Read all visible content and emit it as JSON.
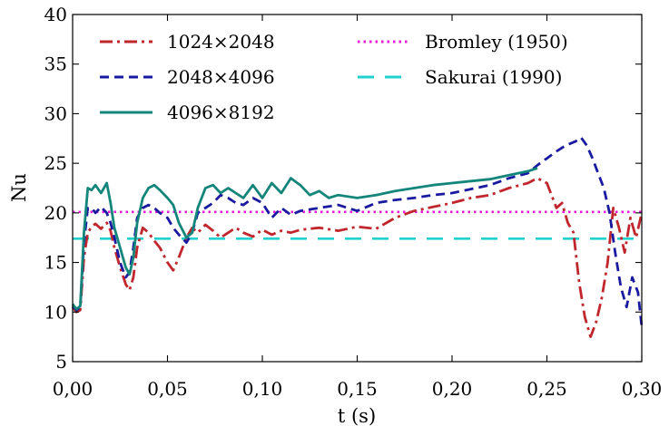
{
  "chart_data": {
    "type": "line",
    "xlabel": "t (s)",
    "ylabel": "Nu",
    "xlim": [
      0,
      0.3
    ],
    "ylim": [
      5,
      40
    ],
    "x_ticks": [
      0,
      0.05,
      0.1,
      0.15,
      0.2,
      0.25,
      0.3
    ],
    "x_tick_labels": [
      "0,00",
      "0,05",
      "0,10",
      "0,15",
      "0,20",
      "0,25",
      "0,30"
    ],
    "y_ticks": [
      5,
      10,
      15,
      20,
      25,
      30,
      35,
      40
    ],
    "y_tick_labels": [
      "5",
      "10",
      "15",
      "20",
      "25",
      "30",
      "35",
      "40"
    ],
    "grid": false,
    "legend_placement": "top",
    "series": [
      {
        "name": "1024×2048",
        "color": "#c0272d",
        "dash": "dash-dot",
        "x": [
          0.0,
          0.002,
          0.004,
          0.006,
          0.008,
          0.01,
          0.012,
          0.015,
          0.018,
          0.02,
          0.022,
          0.025,
          0.028,
          0.03,
          0.032,
          0.034,
          0.037,
          0.04,
          0.043,
          0.046,
          0.05,
          0.053,
          0.056,
          0.06,
          0.063,
          0.066,
          0.07,
          0.074,
          0.078,
          0.082,
          0.086,
          0.09,
          0.095,
          0.1,
          0.105,
          0.11,
          0.115,
          0.12,
          0.13,
          0.14,
          0.15,
          0.16,
          0.17,
          0.18,
          0.19,
          0.2,
          0.21,
          0.22,
          0.23,
          0.24,
          0.245,
          0.25,
          0.255,
          0.258,
          0.261,
          0.264,
          0.267,
          0.27,
          0.273,
          0.276,
          0.279,
          0.282,
          0.285,
          0.288,
          0.291,
          0.294,
          0.297,
          0.3
        ],
        "y": [
          10.5,
          10.0,
          10.2,
          15.5,
          18.0,
          18.6,
          18.9,
          18.4,
          19.0,
          18.2,
          16.5,
          14.5,
          12.8,
          12.2,
          13.5,
          16.5,
          18.5,
          18.0,
          17.2,
          16.5,
          15.0,
          14.2,
          15.5,
          17.5,
          18.5,
          18.0,
          18.8,
          18.2,
          17.5,
          18.0,
          18.5,
          18.0,
          17.6,
          18.3,
          17.8,
          18.2,
          18.0,
          18.3,
          18.5,
          18.2,
          18.6,
          18.4,
          19.5,
          20.2,
          20.6,
          21.0,
          21.5,
          21.8,
          22.5,
          23.0,
          23.5,
          23.0,
          20.5,
          21.0,
          19.0,
          18.0,
          13.0,
          9.5,
          7.5,
          9.0,
          11.5,
          15.0,
          20.5,
          18.5,
          16.0,
          19.5,
          17.5,
          20.0
        ]
      },
      {
        "name": "2048×4096",
        "color": "#1a1aa0",
        "dash": "dashed",
        "x": [
          0.0,
          0.002,
          0.004,
          0.006,
          0.008,
          0.01,
          0.012,
          0.015,
          0.018,
          0.02,
          0.022,
          0.025,
          0.028,
          0.03,
          0.032,
          0.034,
          0.037,
          0.04,
          0.043,
          0.046,
          0.05,
          0.053,
          0.056,
          0.06,
          0.063,
          0.066,
          0.07,
          0.074,
          0.078,
          0.082,
          0.086,
          0.09,
          0.095,
          0.1,
          0.105,
          0.11,
          0.115,
          0.12,
          0.13,
          0.14,
          0.15,
          0.16,
          0.17,
          0.18,
          0.19,
          0.2,
          0.21,
          0.22,
          0.23,
          0.24,
          0.245,
          0.25,
          0.255,
          0.26,
          0.265,
          0.268,
          0.271,
          0.274,
          0.277,
          0.28,
          0.283,
          0.286,
          0.289,
          0.292,
          0.295,
          0.298,
          0.3
        ],
        "y": [
          10.6,
          10.2,
          10.5,
          17.0,
          20.5,
          20.5,
          20.0,
          20.6,
          20.0,
          19.0,
          17.5,
          15.0,
          13.5,
          14.0,
          16.5,
          19.5,
          20.5,
          20.8,
          20.5,
          20.0,
          19.5,
          18.5,
          17.8,
          17.0,
          18.0,
          20.0,
          20.5,
          21.0,
          21.8,
          21.5,
          21.0,
          20.8,
          21.5,
          21.0,
          19.5,
          20.5,
          19.8,
          20.2,
          20.5,
          20.8,
          20.2,
          21.0,
          21.3,
          21.5,
          21.8,
          22.0,
          22.4,
          22.8,
          23.5,
          24.0,
          24.8,
          25.5,
          26.2,
          26.8,
          27.2,
          27.6,
          26.8,
          25.5,
          24.0,
          22.5,
          20.0,
          16.0,
          12.5,
          10.5,
          13.5,
          12.0,
          8.5
        ]
      },
      {
        "name": "4096×8192",
        "color": "#14857a",
        "dash": "solid",
        "x": [
          0.0,
          0.002,
          0.004,
          0.006,
          0.008,
          0.01,
          0.012,
          0.015,
          0.018,
          0.02,
          0.022,
          0.025,
          0.028,
          0.03,
          0.032,
          0.034,
          0.037,
          0.04,
          0.043,
          0.046,
          0.05,
          0.053,
          0.056,
          0.06,
          0.063,
          0.066,
          0.07,
          0.074,
          0.078,
          0.082,
          0.086,
          0.09,
          0.095,
          0.1,
          0.105,
          0.11,
          0.115,
          0.12,
          0.125,
          0.13,
          0.135,
          0.14,
          0.15,
          0.16,
          0.17,
          0.18,
          0.19,
          0.2,
          0.21,
          0.22,
          0.23,
          0.24,
          0.245
        ],
        "y": [
          10.8,
          10.3,
          10.6,
          18.0,
          22.5,
          22.3,
          22.8,
          22.0,
          23.0,
          21.0,
          18.5,
          16.5,
          14.5,
          13.8,
          15.5,
          19.0,
          21.5,
          22.5,
          22.8,
          22.3,
          21.5,
          20.8,
          19.0,
          17.5,
          18.0,
          20.5,
          22.5,
          22.8,
          22.0,
          22.5,
          22.0,
          21.5,
          22.8,
          21.5,
          23.0,
          22.0,
          23.5,
          22.8,
          21.8,
          22.2,
          21.5,
          21.8,
          21.5,
          21.8,
          22.2,
          22.5,
          22.8,
          23.0,
          23.2,
          23.4,
          23.8,
          24.2,
          24.5
        ]
      },
      {
        "name": "Bromley (1950)",
        "color": "#e81ad6",
        "dash": "dotted",
        "x": [
          0.0,
          0.3
        ],
        "y": [
          20.1,
          20.1
        ]
      },
      {
        "name": "Sakurai (1990)",
        "color": "#22d0d0",
        "dash": "long-dash",
        "x": [
          0.0,
          0.3
        ],
        "y": [
          17.4,
          17.4
        ]
      }
    ]
  }
}
